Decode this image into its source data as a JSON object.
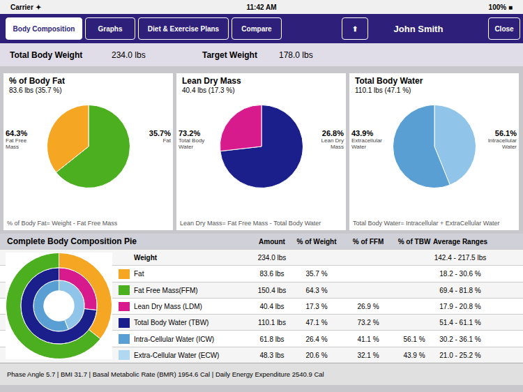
{
  "chart_data": [
    {
      "type": "pie",
      "title": "% of Body Fat",
      "subtitle": "83.6 lbs (35.7 %)",
      "categories": [
        "Fat Free\nMass",
        "Fat"
      ],
      "values": [
        64.3,
        35.7
      ],
      "value_labels": [
        "64.3%",
        "35.7%"
      ],
      "colors": [
        "#4caf20",
        "#f5a623"
      ],
      "data_labels": true,
      "annotations": [
        "% of Body Fat= Weight - Fat Free Mass"
      ]
    },
    {
      "type": "pie",
      "title": "Lean Dry Mass",
      "subtitle": "40.4 lbs (17.3 %)",
      "categories": [
        "Total Body\nWater",
        "Lean Dry\nMass"
      ],
      "values": [
        73.2,
        26.8
      ],
      "value_labels": [
        "73.2%",
        "26.8%"
      ],
      "colors": [
        "#1a1f8c",
        "#d81b8c"
      ],
      "data_labels": true,
      "annotations": [
        "Lean Dry Mass= Fat Free Mass - Total Body Water"
      ]
    },
    {
      "type": "pie",
      "title": "Total Body Water",
      "subtitle": "110.1 lbs (47.1 %)",
      "categories": [
        "Extracellular\nWater",
        "Intracellular\nWater"
      ],
      "values": [
        43.9,
        56.1
      ],
      "value_labels": [
        "43.9%",
        "56.1%"
      ],
      "colors": [
        "#90c4e8",
        "#5a9fd4"
      ],
      "data_labels": true,
      "annotations": [
        "Total Body Water= Intracellular + ExtraCellular Water"
      ]
    },
    {
      "type": "doughnut",
      "title": "Complete Body Composition Pie",
      "series": [
        {
          "values": [
            35.7,
            64.3
          ],
          "colors": [
            "#f5a623",
            "#4caf20"
          ]
        },
        {
          "values": [
            26.8,
            73.2
          ],
          "colors": [
            "#d81b8c",
            "#1a1f8c"
          ]
        },
        {
          "values": [
            43.9,
            56.1
          ],
          "colors": [
            "#90c4e8",
            "#5a9fd4"
          ]
        }
      ],
      "table": {
        "columns": [
          "Amount",
          "% of Weight",
          "% of FFM",
          "% of TBW",
          "Average Ranges"
        ],
        "rows": [
          {
            "name": "Weight",
            "color": null,
            "values": [
              "234.0 lbs",
              null,
              null,
              null,
              "142.4 - 217.5 lbs"
            ]
          },
          {
            "name": "Fat",
            "color": "#f5a623",
            "values": [
              "83.6 lbs",
              "35.7 %",
              null,
              null,
              "18.2 - 30.6 %"
            ]
          },
          {
            "name": "Fat Free Mass(FFM)",
            "color": "#4caf20",
            "values": [
              "150.4 lbs",
              "64.3 %",
              null,
              null,
              "69.4 - 81.8 %"
            ]
          },
          {
            "name": "Lean Dry Mass (LDM)",
            "color": "#d81b8c",
            "values": [
              "40.4 lbs",
              "17.3 %",
              "26.9 %",
              null,
              "17.9 - 20.8 %"
            ]
          },
          {
            "name": "Total Body Water (TBW)",
            "color": "#1a1f8c",
            "values": [
              "110.1 lbs",
              "47.1 %",
              "73.2 %",
              null,
              "51.4 - 61.1 %"
            ]
          },
          {
            "name": "Intra-Cellular Water (ICW)",
            "color": "#5a9fd4",
            "values": [
              "61.8 lbs",
              "26.4 %",
              "41.1 %",
              "56.1 %",
              "30.2 - 36.1 %"
            ]
          },
          {
            "name": "Extra-Cellular Water (ECW)",
            "color": "#b0d8f0",
            "values": [
              "48.3 lbs",
              "20.6 %",
              "32.1 %",
              "43.9 %",
              "21.0 - 25.2 %"
            ]
          }
        ]
      }
    }
  ],
  "annotations": [
    [
      "Carrier ✦",
      "11:42 AM",
      "100% ■"
    ],
    [
      "Body Composition",
      "Graphs",
      "Diet & Exercise Plans",
      "Compare",
      "⬆",
      "John Smith",
      "Close"
    ],
    [
      "Total Body Weight",
      "234.0 lbs",
      "Target Weight",
      "178.0 lbs"
    ],
    [
      "Phase Angle 5.7  |  BMI 31.7  |  Basal Metabolic Rate (BMR) 1954.6 Cal  |  Daily Energy Expenditure  2540.9 Cal"
    ]
  ]
}
